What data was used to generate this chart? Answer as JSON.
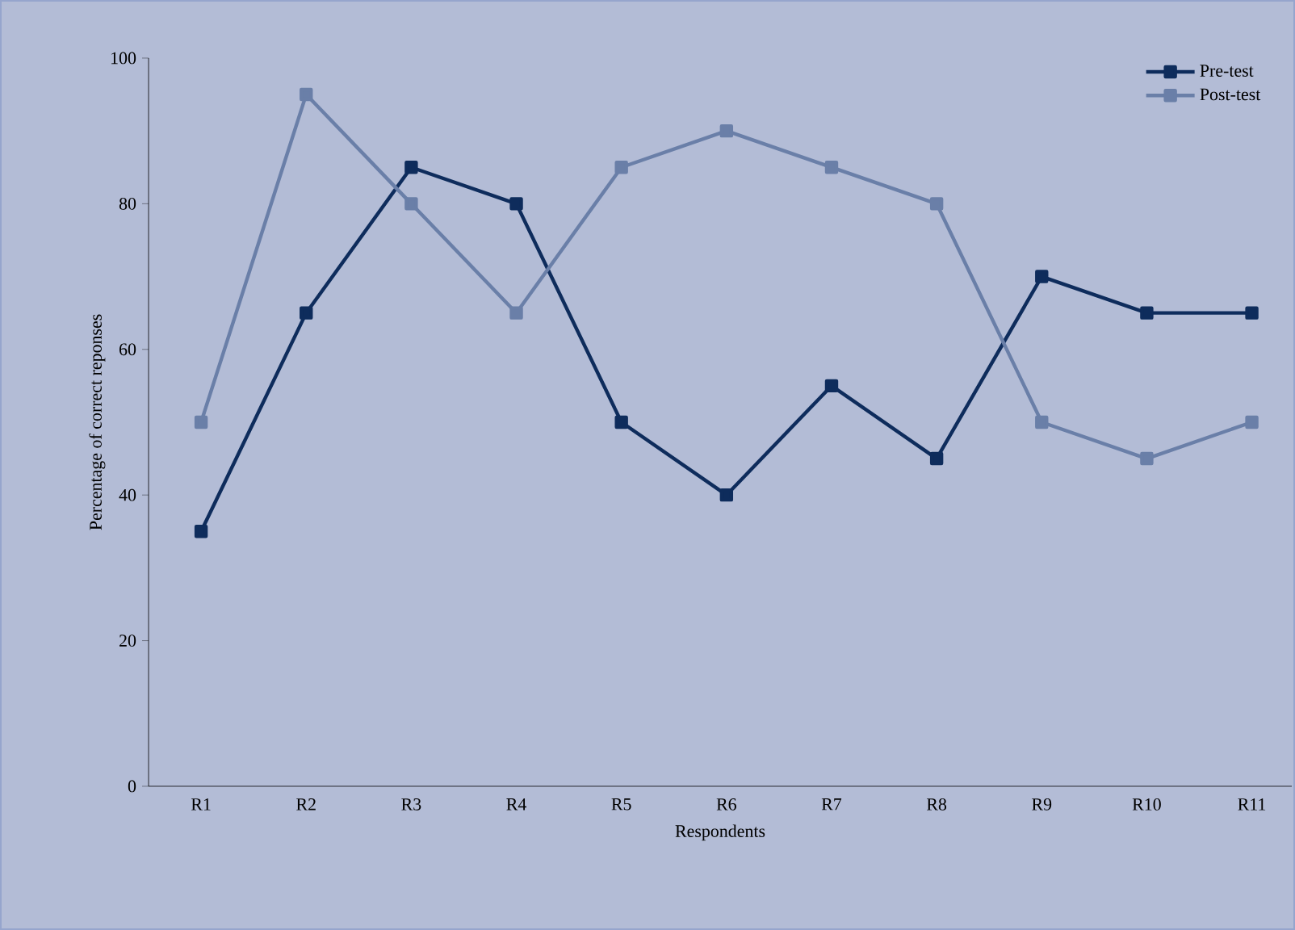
{
  "chart_data": {
    "type": "line",
    "xlabel": "Respondents",
    "ylabel": "Percentage of correct reponses",
    "categories": [
      "R1",
      "R2",
      "R3",
      "R4",
      "R5",
      "R6",
      "R7",
      "R8",
      "R9",
      "R10",
      "R11"
    ],
    "series": [
      {
        "name": "Pre-test",
        "color": "#0e2c5c",
        "values": [
          35,
          65,
          85,
          80,
          50,
          40,
          55,
          45,
          70,
          65,
          65
        ]
      },
      {
        "name": "Post-test",
        "color": "#6a7fa8",
        "values": [
          50,
          95,
          80,
          65,
          85,
          90,
          85,
          80,
          50,
          45,
          50
        ]
      }
    ],
    "ylim": [
      0,
      100
    ],
    "yticks": [
      0,
      20,
      40,
      60,
      80,
      100
    ],
    "legend": "top right",
    "marker": "square",
    "line_style": "solid",
    "grid": false
  }
}
